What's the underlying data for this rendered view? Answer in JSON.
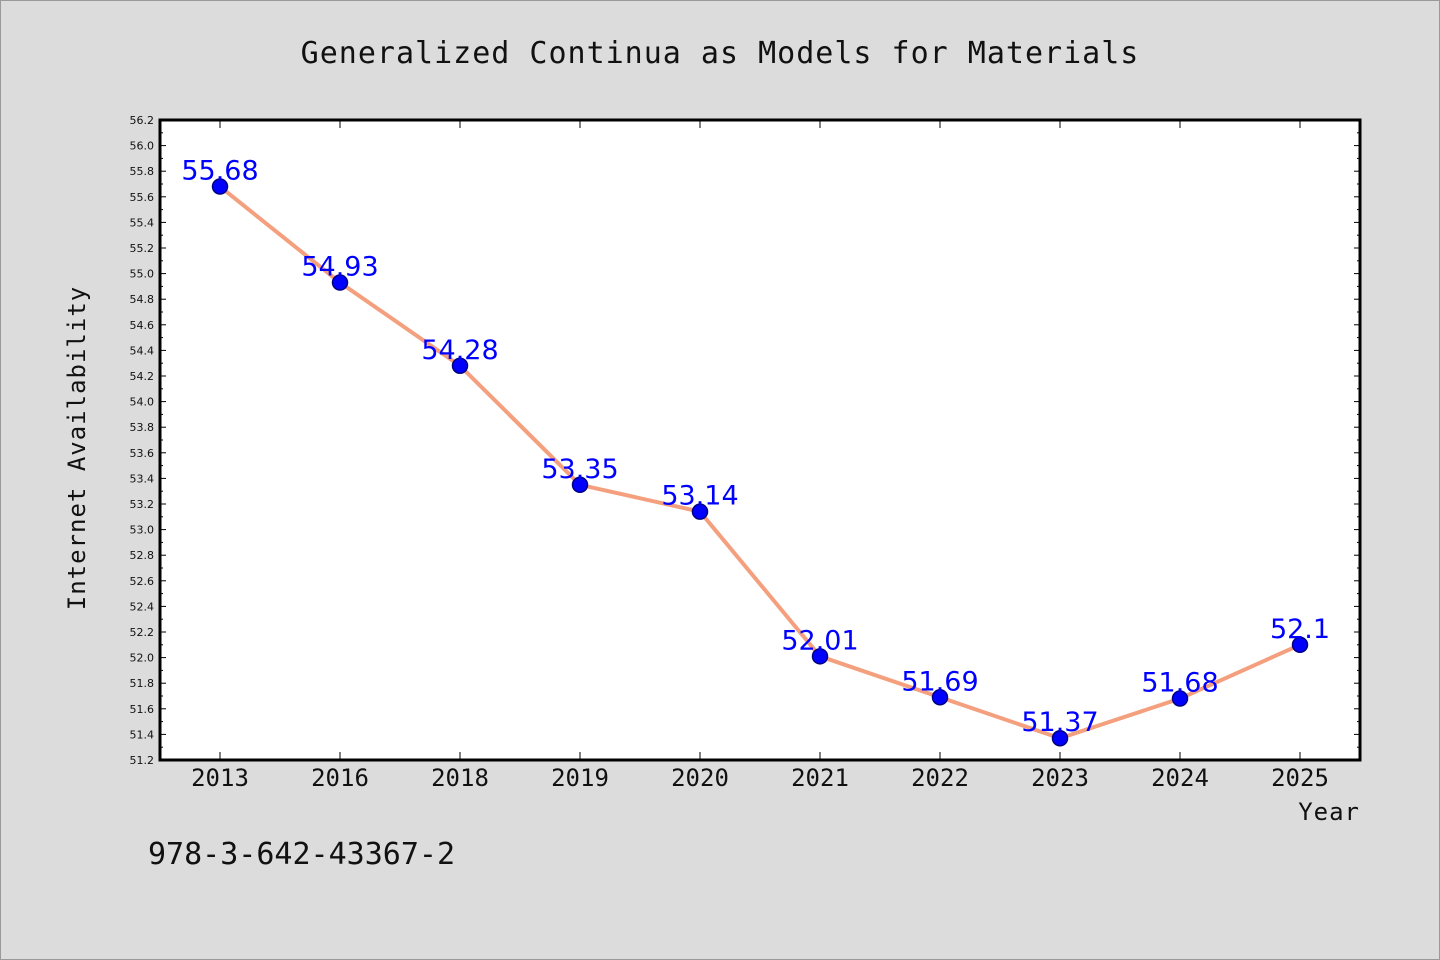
{
  "chart_data": {
    "type": "line",
    "title": "Generalized Continua as Models for Materials",
    "xlabel": "Year",
    "ylabel": "Internet Availability",
    "categories": [
      "2013",
      "2016",
      "2018",
      "2019",
      "2020",
      "2021",
      "2022",
      "2023",
      "2024",
      "2025"
    ],
    "series": [
      {
        "values": [
          55.68,
          54.93,
          54.28,
          53.35,
          53.14,
          52.01,
          51.69,
          51.37,
          51.68,
          52.1
        ],
        "labels": [
          "55.68",
          "54.93",
          "54.28",
          "53.35",
          "53.14",
          "52.01",
          "51.69",
          "51.37",
          "51.68",
          "52.1"
        ]
      }
    ],
    "ylim": [
      51.2,
      56.2
    ],
    "ytick_labels": [
      "51.2",
      "51.4",
      "51.6",
      "51.8",
      "52.0",
      "52.2",
      "52.4",
      "52.6",
      "52.8",
      "53.0",
      "53.2",
      "53.4",
      "53.6",
      "53.8",
      "54.0",
      "54.2",
      "54.4",
      "54.6",
      "54.8",
      "55.0",
      "55.2",
      "55.4",
      "55.6",
      "55.8",
      "56.0",
      "56.2"
    ],
    "grid": false,
    "legend": "none",
    "colors": {
      "line": "#f4a07e",
      "marker_fill": "#0000ff",
      "marker_edge": "#000080",
      "data_label": "#0000ff",
      "plot_background": "#ffffff",
      "figure_background": "#dcdcdc"
    }
  },
  "footnote": "978-3-642-43367-2"
}
